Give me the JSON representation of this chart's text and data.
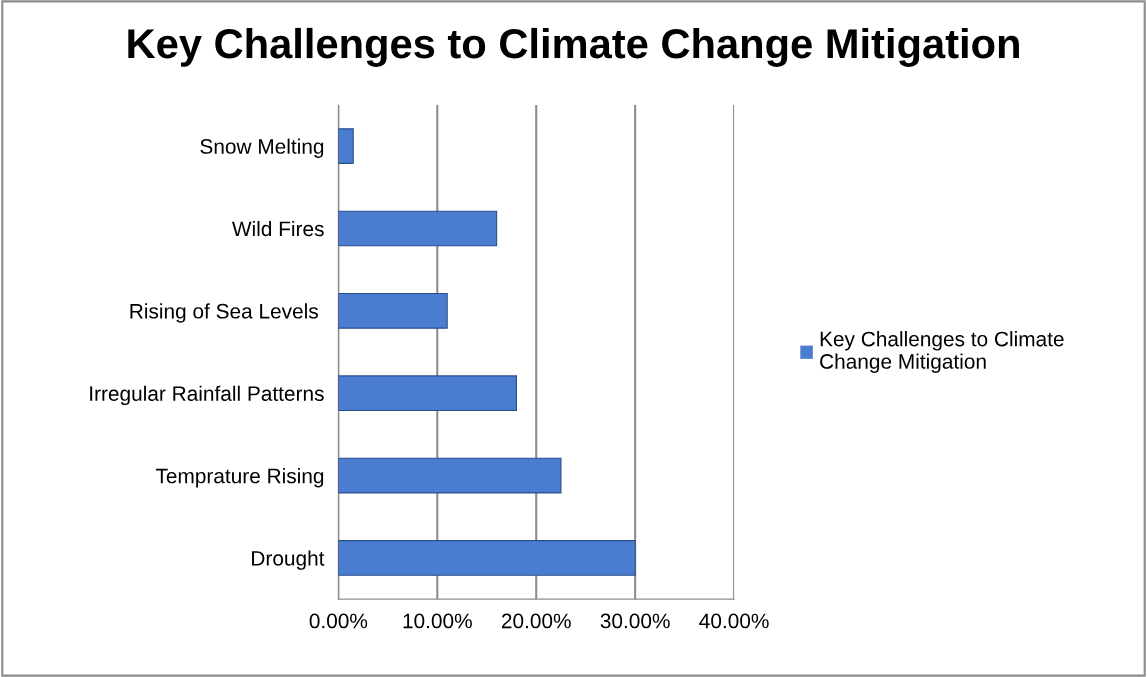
{
  "chart_data": {
    "type": "bar",
    "orientation": "horizontal",
    "title": "Key Challenges to Climate Change Mitigation",
    "categories": [
      "Snow Melting",
      "Wild Fires",
      "Rising of Sea Levels ",
      "Irregular Rainfall Patterns",
      "Temprature Rising",
      "Drought"
    ],
    "series": [
      {
        "name": "Key Challenges to Climate Change Mitigation",
        "color": "#4a7ccf",
        "values": [
          1.5,
          16,
          11,
          18,
          22.5,
          30
        ]
      }
    ],
    "xlim": [
      0,
      40
    ],
    "xticks": [
      {
        "value": 0,
        "label": "0.00%"
      },
      {
        "value": 10,
        "label": "10.00%"
      },
      {
        "value": 20,
        "label": "20.00%"
      },
      {
        "value": 30,
        "label": "30.00%"
      },
      {
        "value": 40,
        "label": "40.00%"
      }
    ],
    "grid": "x",
    "legend": "right"
  }
}
